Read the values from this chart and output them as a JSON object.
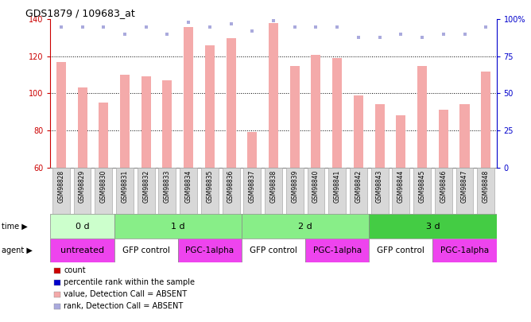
{
  "title": "GDS1879 / 109683_at",
  "samples": [
    "GSM98828",
    "GSM98829",
    "GSM98830",
    "GSM98831",
    "GSM98832",
    "GSM98833",
    "GSM98834",
    "GSM98835",
    "GSM98836",
    "GSM98837",
    "GSM98838",
    "GSM98839",
    "GSM98840",
    "GSM98841",
    "GSM98842",
    "GSM98843",
    "GSM98844",
    "GSM98845",
    "GSM98846",
    "GSM98847",
    "GSM98848"
  ],
  "count_values": [
    117,
    103,
    95,
    110,
    109,
    107,
    136,
    126,
    130,
    79,
    138,
    115,
    121,
    119,
    99,
    94,
    88,
    115,
    91,
    94,
    112
  ],
  "rank_values": [
    95,
    95,
    95,
    90,
    95,
    90,
    98,
    95,
    97,
    92,
    99,
    95,
    95,
    95,
    88,
    88,
    90,
    88,
    90,
    90,
    95
  ],
  "bar_color": "#f4aaaa",
  "rank_color": "#aaaadd",
  "left_ylim": [
    60,
    140
  ],
  "right_ylim": [
    0,
    100
  ],
  "left_yticks": [
    60,
    80,
    100,
    120,
    140
  ],
  "right_yticks": [
    0,
    25,
    50,
    75,
    100
  ],
  "right_yticklabels": [
    "0",
    "25",
    "50",
    "75",
    "100%"
  ],
  "left_axis_color": "#cc0000",
  "right_axis_color": "#0000cc",
  "grid_lines": [
    80,
    100,
    120
  ],
  "time_groups": [
    {
      "label": "0 d",
      "start": 0,
      "end": 3,
      "color": "#ccffcc"
    },
    {
      "label": "1 d",
      "start": 3,
      "end": 9,
      "color": "#88ee88"
    },
    {
      "label": "2 d",
      "start": 9,
      "end": 15,
      "color": "#88ee88"
    },
    {
      "label": "3 d",
      "start": 15,
      "end": 21,
      "color": "#44cc44"
    }
  ],
  "agent_groups": [
    {
      "label": "untreated",
      "start": 0,
      "end": 3,
      "color": "#ee44ee"
    },
    {
      "label": "GFP control",
      "start": 3,
      "end": 6,
      "color": "#ffffff"
    },
    {
      "label": "PGC-1alpha",
      "start": 6,
      "end": 9,
      "color": "#ee44ee"
    },
    {
      "label": "GFP control",
      "start": 9,
      "end": 12,
      "color": "#ffffff"
    },
    {
      "label": "PGC-1alpha",
      "start": 12,
      "end": 15,
      "color": "#ee44ee"
    },
    {
      "label": "GFP control",
      "start": 15,
      "end": 18,
      "color": "#ffffff"
    },
    {
      "label": "PGC-1alpha",
      "start": 18,
      "end": 21,
      "color": "#ee44ee"
    }
  ],
  "legend_items": [
    {
      "label": "count",
      "color": "#cc0000"
    },
    {
      "label": "percentile rank within the sample",
      "color": "#0000cc"
    },
    {
      "label": "value, Detection Call = ABSENT",
      "color": "#f4aaaa"
    },
    {
      "label": "rank, Detection Call = ABSENT",
      "color": "#aaaadd"
    }
  ],
  "time_label": "time",
  "agent_label": "agent",
  "bg_color": "#ffffff",
  "sample_box_color": "#d8d8d8"
}
